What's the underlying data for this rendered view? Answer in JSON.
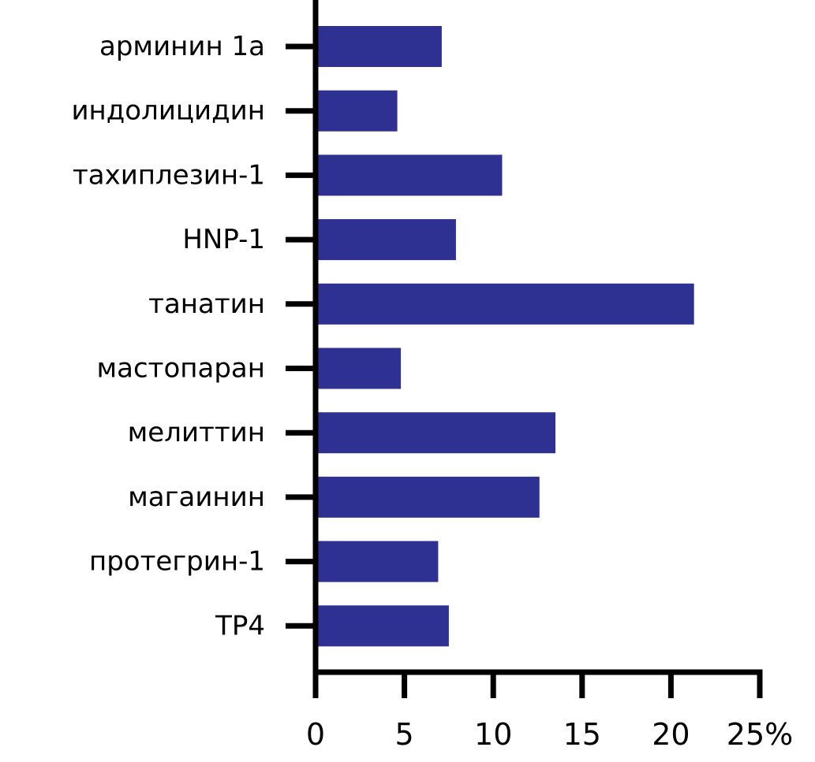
{
  "chart_data": {
    "type": "bar",
    "orientation": "horizontal",
    "categories": [
      "арминин 1а",
      "индолицидин",
      "тахиплезин-1",
      "HNP-1",
      "танатин",
      "мастопаран",
      "мелиттин",
      "магаинин",
      "протегрин-1",
      "TP4"
    ],
    "values": [
      7.1,
      4.6,
      10.5,
      7.9,
      21.3,
      4.8,
      13.5,
      12.6,
      6.9,
      7.5
    ],
    "xlim": [
      0,
      25
    ],
    "xticks": [
      0,
      5,
      10,
      15,
      20,
      25
    ],
    "xtick_labels": [
      "0",
      "5",
      "10",
      "15",
      "20",
      "25%"
    ],
    "title": "",
    "xlabel": "",
    "ylabel": "",
    "grid": false,
    "legend": "none",
    "bar_color": "#2e3192",
    "axis_color": "#000000"
  }
}
